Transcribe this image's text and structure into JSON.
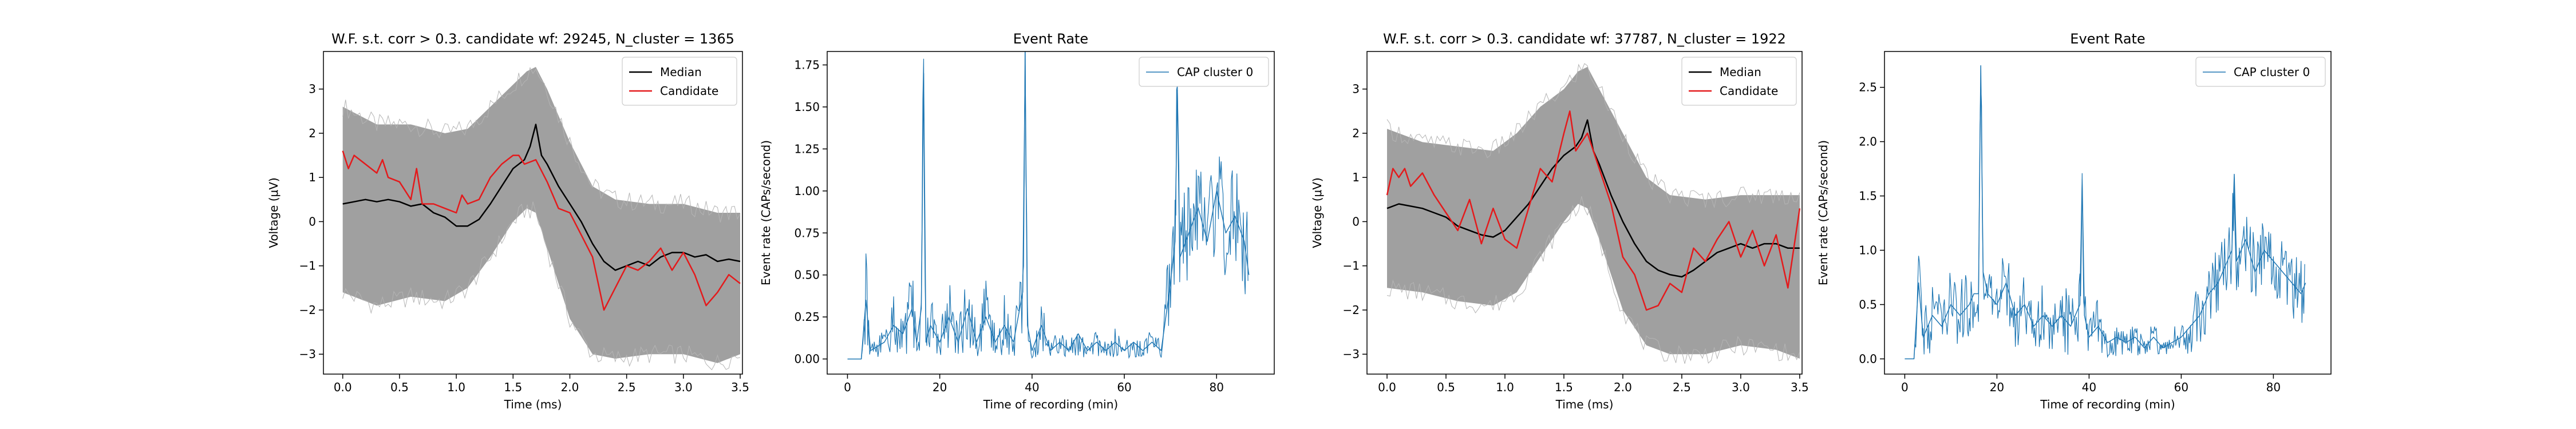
{
  "chart_data": [
    {
      "type": "line",
      "title": "W.F. s.t. corr > 0.3. candidate wf: 29245, N_cluster = 1365",
      "xlabel": "Time (ms)",
      "ylabel": "Voltage (μV)",
      "xlim": [
        -0.17,
        3.52
      ],
      "ylim": [
        -3.45,
        3.85
      ],
      "xticks": [
        0.0,
        0.5,
        1.0,
        1.5,
        2.0,
        2.5,
        3.0,
        3.5
      ],
      "xtick_labels": [
        "0.0",
        "0.5",
        "1.0",
        "1.5",
        "2.0",
        "2.5",
        "3.0",
        "3.5"
      ],
      "yticks": [
        -3,
        -2,
        -1,
        0,
        1,
        2,
        3
      ],
      "ytick_labels": [
        "−3",
        "−2",
        "−1",
        "0",
        "1",
        "2",
        "3"
      ],
      "grid": false,
      "legend": "upper right",
      "colors": {
        "envelope": "#a0a0a0",
        "median": "#000000",
        "candidate": "#e41a1c"
      },
      "envelope": {
        "x": [
          0.0,
          0.3,
          0.6,
          0.9,
          1.1,
          1.3,
          1.5,
          1.62,
          1.7,
          1.8,
          2.0,
          2.2,
          2.4,
          2.7,
          3.0,
          3.3,
          3.5
        ],
        "upper": [
          2.6,
          2.2,
          2.2,
          2.0,
          2.1,
          2.6,
          3.1,
          3.4,
          3.5,
          3.0,
          1.8,
          0.8,
          0.5,
          0.4,
          0.4,
          0.2,
          0.2
        ],
        "lower": [
          -1.6,
          -1.9,
          -1.7,
          -1.8,
          -1.5,
          -0.8,
          0.0,
          0.3,
          0.2,
          -0.6,
          -2.2,
          -3.0,
          -3.1,
          -3.0,
          -3.0,
          -3.2,
          -3.0
        ]
      },
      "series": [
        {
          "name": "Median",
          "x": [
            0.0,
            0.1,
            0.2,
            0.3,
            0.4,
            0.5,
            0.6,
            0.7,
            0.8,
            0.9,
            1.0,
            1.1,
            1.2,
            1.3,
            1.4,
            1.5,
            1.6,
            1.65,
            1.7,
            1.75,
            1.8,
            1.9,
            2.0,
            2.1,
            2.2,
            2.3,
            2.4,
            2.5,
            2.6,
            2.7,
            2.8,
            2.9,
            3.0,
            3.1,
            3.2,
            3.3,
            3.4,
            3.5
          ],
          "y": [
            0.4,
            0.45,
            0.5,
            0.45,
            0.5,
            0.45,
            0.35,
            0.4,
            0.2,
            0.1,
            -0.1,
            -0.1,
            0.05,
            0.4,
            0.8,
            1.2,
            1.4,
            1.7,
            2.2,
            1.5,
            1.3,
            0.8,
            0.4,
            0.0,
            -0.5,
            -0.9,
            -1.1,
            -1.0,
            -0.9,
            -1.0,
            -0.8,
            -0.7,
            -0.7,
            -0.8,
            -0.75,
            -0.9,
            -0.85,
            -0.9
          ]
        },
        {
          "name": "Candidate",
          "x": [
            0.0,
            0.05,
            0.1,
            0.2,
            0.3,
            0.35,
            0.4,
            0.5,
            0.6,
            0.65,
            0.7,
            0.8,
            0.9,
            1.0,
            1.05,
            1.1,
            1.2,
            1.3,
            1.4,
            1.5,
            1.55,
            1.6,
            1.7,
            1.8,
            1.9,
            2.0,
            2.1,
            2.2,
            2.3,
            2.4,
            2.5,
            2.6,
            2.7,
            2.8,
            2.9,
            3.0,
            3.1,
            3.2,
            3.3,
            3.4,
            3.5
          ],
          "y": [
            1.6,
            1.2,
            1.5,
            1.3,
            1.1,
            1.4,
            1.0,
            0.9,
            0.5,
            1.2,
            0.4,
            0.4,
            0.3,
            0.2,
            0.6,
            0.4,
            0.5,
            1.0,
            1.3,
            1.5,
            1.5,
            1.3,
            1.4,
            0.9,
            0.3,
            0.2,
            -0.3,
            -0.8,
            -2.0,
            -1.5,
            -1.0,
            -1.1,
            -0.9,
            -0.6,
            -1.1,
            -0.7,
            -1.2,
            -1.9,
            -1.6,
            -1.2,
            -1.4
          ]
        }
      ]
    },
    {
      "type": "line",
      "title": "Event Rate",
      "xlabel": "Time of recording (min)",
      "ylabel": "Event rate (CAPs/second)",
      "xlim": [
        -4.4,
        92.5
      ],
      "ylim": [
        -0.09,
        1.83
      ],
      "xticks": [
        0,
        20,
        40,
        60,
        80
      ],
      "xtick_labels": [
        "0",
        "20",
        "40",
        "60",
        "80"
      ],
      "yticks": [
        0.0,
        0.25,
        0.5,
        0.75,
        1.0,
        1.25,
        1.5,
        1.75
      ],
      "ytick_labels": [
        "0.00",
        "0.25",
        "0.50",
        "0.75",
        "1.00",
        "1.25",
        "1.50",
        "1.75"
      ],
      "grid": false,
      "legend": "upper right",
      "colors": {
        "line": "#1f77b4"
      },
      "series": [
        {
          "name": "CAP cluster 0",
          "x": [
            0,
            3,
            4,
            5,
            8,
            10,
            12,
            14,
            15,
            16,
            16.5,
            17,
            18,
            20,
            22,
            24,
            26,
            28,
            30,
            32,
            34,
            36,
            38,
            38.5,
            39,
            40,
            42,
            44,
            46,
            48,
            50,
            52,
            54,
            56,
            58,
            60,
            62,
            64,
            66,
            68,
            70,
            71,
            71.5,
            72,
            74,
            76,
            78,
            80,
            82,
            84,
            86,
            87
          ],
          "y": [
            0,
            0,
            0.35,
            0.05,
            0.1,
            0.2,
            0.15,
            0.3,
            0.1,
            0.3,
            1.7,
            0.1,
            0.2,
            0.1,
            0.25,
            0.1,
            0.3,
            0.1,
            0.25,
            0.1,
            0.2,
            0.1,
            0.4,
            1.75,
            0.2,
            0.05,
            0.2,
            0.05,
            0.1,
            0.05,
            0.15,
            0.05,
            0.1,
            0.05,
            0.1,
            0.05,
            0.1,
            0.05,
            0.1,
            0.05,
            0.45,
            0.7,
            1.6,
            0.6,
            0.75,
            0.9,
            0.7,
            1.0,
            0.75,
            0.85,
            0.7,
            0.5
          ]
        }
      ]
    },
    {
      "type": "line",
      "title": "W.F. s.t. corr > 0.3. candidate wf: 37787, N_cluster = 1922",
      "xlabel": "Time (ms)",
      "ylabel": "Voltage (μV)",
      "xlim": [
        -0.17,
        3.52
      ],
      "ylim": [
        -3.45,
        3.85
      ],
      "xticks": [
        0.0,
        0.5,
        1.0,
        1.5,
        2.0,
        2.5,
        3.0,
        3.5
      ],
      "xtick_labels": [
        "0.0",
        "0.5",
        "1.0",
        "1.5",
        "2.0",
        "2.5",
        "3.0",
        "3.5"
      ],
      "yticks": [
        -3,
        -2,
        -1,
        0,
        1,
        2,
        3
      ],
      "ytick_labels": [
        "−3",
        "−2",
        "−1",
        "0",
        "1",
        "2",
        "3"
      ],
      "grid": false,
      "legend": "upper right",
      "colors": {
        "envelope": "#a0a0a0",
        "median": "#000000",
        "candidate": "#e41a1c"
      },
      "envelope": {
        "x": [
          0.0,
          0.3,
          0.6,
          0.9,
          1.1,
          1.3,
          1.5,
          1.62,
          1.7,
          1.8,
          2.0,
          2.2,
          2.4,
          2.7,
          3.0,
          3.3,
          3.5
        ],
        "upper": [
          2.1,
          1.8,
          1.7,
          1.6,
          2.0,
          2.6,
          3.0,
          3.4,
          3.5,
          3.0,
          2.0,
          1.0,
          0.6,
          0.5,
          0.6,
          0.6,
          0.6
        ],
        "lower": [
          -1.5,
          -1.6,
          -1.8,
          -1.9,
          -1.6,
          -0.8,
          0.0,
          0.4,
          0.3,
          -0.4,
          -2.0,
          -2.8,
          -3.0,
          -3.0,
          -2.8,
          -2.9,
          -3.1
        ]
      },
      "series": [
        {
          "name": "Median",
          "x": [
            0.0,
            0.1,
            0.2,
            0.3,
            0.4,
            0.5,
            0.6,
            0.7,
            0.8,
            0.9,
            1.0,
            1.1,
            1.2,
            1.3,
            1.4,
            1.5,
            1.6,
            1.65,
            1.7,
            1.75,
            1.8,
            1.9,
            2.0,
            2.1,
            2.2,
            2.3,
            2.4,
            2.5,
            2.6,
            2.7,
            2.8,
            2.9,
            3.0,
            3.1,
            3.2,
            3.3,
            3.4,
            3.5
          ],
          "y": [
            0.3,
            0.4,
            0.35,
            0.3,
            0.2,
            0.1,
            -0.1,
            -0.2,
            -0.3,
            -0.35,
            -0.2,
            0.1,
            0.4,
            0.8,
            1.2,
            1.5,
            1.7,
            1.9,
            2.3,
            1.6,
            1.3,
            0.6,
            0.0,
            -0.5,
            -0.9,
            -1.1,
            -1.2,
            -1.25,
            -1.1,
            -0.9,
            -0.7,
            -0.6,
            -0.5,
            -0.6,
            -0.5,
            -0.5,
            -0.6,
            -0.6
          ]
        },
        {
          "name": "Candidate",
          "x": [
            0.0,
            0.05,
            0.1,
            0.15,
            0.2,
            0.3,
            0.4,
            0.5,
            0.6,
            0.7,
            0.8,
            0.9,
            1.0,
            1.1,
            1.2,
            1.3,
            1.4,
            1.5,
            1.55,
            1.6,
            1.7,
            1.8,
            1.9,
            2.0,
            2.1,
            2.2,
            2.3,
            2.4,
            2.5,
            2.6,
            2.7,
            2.8,
            2.9,
            3.0,
            3.1,
            3.2,
            3.3,
            3.4,
            3.5
          ],
          "y": [
            0.6,
            1.2,
            1.0,
            1.2,
            0.8,
            1.1,
            0.6,
            0.2,
            -0.2,
            0.5,
            -0.5,
            0.3,
            -0.4,
            -0.6,
            0.3,
            1.2,
            0.9,
            2.0,
            2.5,
            1.6,
            2.0,
            1.2,
            0.4,
            -0.8,
            -1.2,
            -2.0,
            -1.9,
            -1.4,
            -1.6,
            -0.6,
            -0.9,
            -0.4,
            0.0,
            -0.8,
            -0.2,
            -1.0,
            -0.3,
            -1.5,
            0.3
          ]
        }
      ]
    },
    {
      "type": "line",
      "title": "Event Rate",
      "xlabel": "Time of recording (min)",
      "ylabel": "Event rate (CAPs/second)",
      "xlim": [
        -4.4,
        92.5
      ],
      "ylim": [
        -0.14,
        2.83
      ],
      "xticks": [
        0,
        20,
        40,
        60,
        80
      ],
      "xtick_labels": [
        "0",
        "20",
        "40",
        "60",
        "80"
      ],
      "yticks": [
        0.0,
        0.5,
        1.0,
        1.5,
        2.0,
        2.5
      ],
      "ytick_labels": [
        "0.0",
        "0.5",
        "1.0",
        "1.5",
        "2.0",
        "2.5"
      ],
      "grid": false,
      "legend": "upper right",
      "colors": {
        "line": "#1f77b4"
      },
      "series": [
        {
          "name": "CAP cluster 0",
          "x": [
            0,
            2,
            3,
            4,
            6,
            8,
            10,
            12,
            14,
            15,
            16,
            16.5,
            17,
            18,
            20,
            22,
            24,
            26,
            28,
            30,
            32,
            34,
            36,
            38,
            38.5,
            39,
            40,
            42,
            44,
            46,
            48,
            50,
            52,
            54,
            56,
            58,
            60,
            62,
            64,
            66,
            68,
            70,
            71,
            71.5,
            72,
            74,
            76,
            78,
            80,
            82,
            84,
            86,
            87
          ],
          "y": [
            0,
            0,
            0.7,
            0.2,
            0.4,
            0.3,
            0.5,
            0.4,
            0.5,
            0.6,
            0.6,
            2.7,
            0.8,
            0.6,
            0.5,
            0.7,
            0.4,
            0.5,
            0.3,
            0.4,
            0.3,
            0.4,
            0.3,
            0.5,
            1.65,
            0.4,
            0.2,
            0.3,
            0.15,
            0.2,
            0.15,
            0.2,
            0.1,
            0.2,
            0.1,
            0.15,
            0.2,
            0.3,
            0.4,
            0.6,
            0.7,
            0.9,
            1.0,
            1.7,
            0.9,
            1.1,
            0.8,
            1.0,
            0.9,
            0.8,
            0.7,
            0.6,
            0.7
          ]
        }
      ]
    }
  ]
}
